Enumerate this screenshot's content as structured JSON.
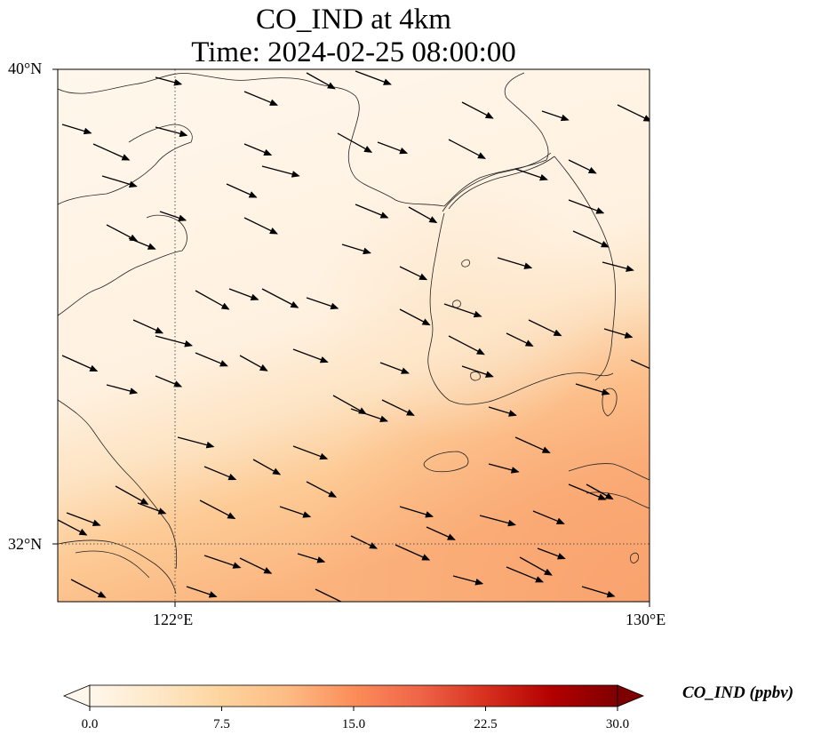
{
  "figure": {
    "title_line1": "CO_IND at 4km",
    "title_line2": "Time: 2024-02-25 08:00:00"
  },
  "map": {
    "extent": {
      "lon_min": 121.0,
      "lon_max": 130.0,
      "lat_min": 31.0,
      "lat_max": 40.0
    },
    "lat_ticks": [
      {
        "value": 40,
        "label": "40°N"
      },
      {
        "value": 32,
        "label": "32°N"
      }
    ],
    "lon_ticks": [
      {
        "value": 122,
        "label": "122°E"
      },
      {
        "value": 130,
        "label": "130°E"
      }
    ],
    "gridlines": {
      "lons": [
        122
      ],
      "lats": [
        32
      ],
      "style": "dotted"
    },
    "field": {
      "variable": "CO_IND",
      "units": "ppbv",
      "description_levels": "low (~0-2 ppbv) over north and central sea, rising to ~8-14 ppbv toward the south-east corner"
    },
    "wind_vectors": {
      "dominant_direction": "from north-west toward south-east",
      "color": "#000000"
    }
  },
  "colorbar": {
    "label": "CO_IND (ppbv)",
    "min": 0.0,
    "max": 30.0,
    "ticks": [
      "0.0",
      "7.5",
      "15.0",
      "22.5",
      "30.0"
    ],
    "extend": "both",
    "colormap": "OrRd",
    "colors": [
      "#fff7ec",
      "#fee8c8",
      "#fdd49e",
      "#fdbb84",
      "#fc8d59",
      "#ef6548",
      "#d7301f",
      "#b30000",
      "#7f0000"
    ]
  }
}
